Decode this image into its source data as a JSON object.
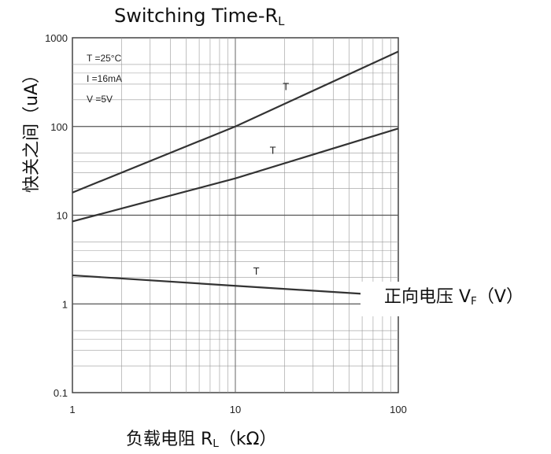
{
  "chart_data": {
    "type": "line",
    "title": "Switching Time-R",
    "title_sub": "L",
    "xlabel": "负载电阻 R",
    "xlabel_sub": "L",
    "xlabel_unit": "（kΩ）",
    "ylabel": "快关之间（uA）",
    "x_scale": "log",
    "y_scale": "log",
    "xlim": [
      1,
      100
    ],
    "ylim": [
      0.1,
      1000
    ],
    "x_ticks": [
      "1",
      "10",
      "100"
    ],
    "y_ticks": [
      "1000",
      "100",
      "10",
      "1",
      "0.1"
    ],
    "grid": true,
    "conditions": [
      "T =25°C",
      "I =16mA",
      "V =5V"
    ],
    "series": [
      {
        "name": "T",
        "x": [
          1,
          10,
          100
        ],
        "values": [
          18,
          100,
          700
        ]
      },
      {
        "name": "T",
        "x": [
          1,
          10,
          100
        ],
        "values": [
          8.5,
          26,
          95
        ]
      },
      {
        "name": "T",
        "x": [
          1,
          10,
          60
        ],
        "values": [
          2.1,
          1.6,
          1.3
        ]
      }
    ]
  },
  "overlay": {
    "label": "正向电压 V",
    "label_sub": "F",
    "label_unit": "（V）"
  },
  "colors": {
    "line": "#333333",
    "grid": "#999999",
    "frame": "#444444"
  }
}
